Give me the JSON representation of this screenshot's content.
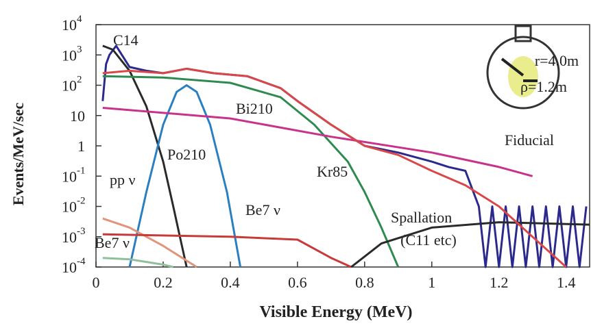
{
  "chart_data": {
    "type": "line",
    "x_label": "Visible Energy (MeV)",
    "y_label": "Events/MeV/sec",
    "log_y": true,
    "xlim": [
      0,
      1.47
    ],
    "ylim": [
      0.0001,
      10000
    ],
    "xticks": [
      0,
      0.2,
      0.4,
      0.6,
      0.8,
      1,
      1.2,
      1.4
    ],
    "yticks": [
      {
        "value": 10000,
        "label": "10^4"
      },
      {
        "value": 1000,
        "label": "10^3"
      },
      {
        "value": 100,
        "label": "10^2"
      },
      10,
      1,
      {
        "value": 0.1,
        "label": "10^-1"
      },
      {
        "value": 0.01,
        "label": "10^-2"
      },
      {
        "value": 0.001,
        "label": "10^-3"
      },
      {
        "value": 0.0001,
        "label": "10^-4"
      }
    ],
    "series": [
      {
        "color": "#2b2a8c",
        "x": [
          0.02,
          0.03,
          0.04,
          0.06,
          0.1,
          0.15,
          0.2,
          0.27,
          0.35,
          0.45,
          0.55,
          0.6,
          0.7,
          0.8,
          0.9,
          1.0,
          1.05,
          1.1,
          1.14,
          1.16,
          1.18,
          1.2,
          1.22,
          1.24,
          1.26,
          1.28,
          1.3,
          1.32,
          1.34,
          1.36,
          1.38,
          1.4,
          1.42,
          1.44,
          1.46
        ],
        "values": [
          30,
          500,
          1000,
          2000,
          400,
          300,
          250,
          350,
          250,
          200,
          80,
          30,
          5,
          1,
          0.6,
          0.3,
          0.2,
          0.15,
          0.01,
          0.0001,
          0.01,
          0.0001,
          0.01,
          0.0001,
          0.01,
          0.0001,
          0.01,
          0.0001,
          0.01,
          0.0001,
          0.01,
          0.0001,
          0.01,
          0.0001,
          0.01
        ]
      },
      {
        "name": "C14",
        "color": "#2a2a2a",
        "x": [
          0.02,
          0.05,
          0.1,
          0.15,
          0.2,
          0.23,
          0.25,
          0.27
        ],
        "values": [
          2000,
          1500,
          300,
          20,
          0.3,
          0.01,
          0.001,
          0.0001
        ]
      },
      {
        "name": "Kr85",
        "color": "#2e8a4e",
        "x": [
          0.02,
          0.2,
          0.4,
          0.55,
          0.65,
          0.75,
          0.8,
          0.85,
          0.9
        ],
        "values": [
          200,
          180,
          120,
          40,
          5,
          0.3,
          0.03,
          0.002,
          0.0001
        ]
      },
      {
        "name": "Po210",
        "color": "#2a7fc0",
        "x": [
          0.1,
          0.15,
          0.2,
          0.24,
          0.27,
          0.3,
          0.34,
          0.39,
          0.43
        ],
        "values": [
          0.0001,
          0.03,
          5,
          60,
          100,
          60,
          5,
          0.03,
          0.0001
        ]
      },
      {
        "name": "Bi210",
        "color": "#c8328a",
        "x": [
          0.02,
          0.4,
          0.7,
          1.0,
          1.2,
          1.3
        ],
        "values": [
          18,
          8,
          2,
          0.6,
          0.2,
          0.1
        ]
      },
      {
        "name": "pp ν",
        "color": "#e0947a",
        "x": [
          0.02,
          0.1,
          0.2,
          0.3
        ],
        "values": [
          0.004,
          0.002,
          0.0005,
          0.0001
        ]
      },
      {
        "name": "Be7 ν",
        "color": "#c83a3a",
        "x": [
          0.02,
          0.4,
          0.6,
          0.7,
          0.76
        ],
        "values": [
          0.0012,
          0.001,
          0.0008,
          0.0002,
          0.0001
        ]
      },
      {
        "name": "Be7 ν",
        "color": "#8fc09a",
        "x": [
          0.02,
          0.1,
          0.2,
          0.23
        ],
        "values": [
          0.0002,
          0.00018,
          0.00012,
          0.0001
        ]
      },
      {
        "name": "Spallation",
        "color": "#2a2a2a",
        "x": [
          0.76,
          0.85,
          1.0,
          1.2,
          1.47
        ],
        "values": [
          0.0001,
          0.0006,
          0.002,
          0.003,
          0.0025
        ]
      },
      {
        "color": "#d84848",
        "x": [
          0.02,
          0.1,
          0.2,
          0.27,
          0.35,
          0.45,
          0.55,
          0.6,
          0.7,
          0.8,
          0.9,
          1.0,
          1.1,
          1.2,
          1.3,
          1.4
        ],
        "values": [
          250,
          300,
          250,
          350,
          250,
          200,
          80,
          30,
          5,
          1,
          0.5,
          0.15,
          0.05,
          0.01,
          0.001,
          0.0001
        ]
      }
    ],
    "annotations": [
      "(C11 etc)",
      "r=4.0m",
      "ρ=1.2m",
      "Fiducial"
    ]
  }
}
